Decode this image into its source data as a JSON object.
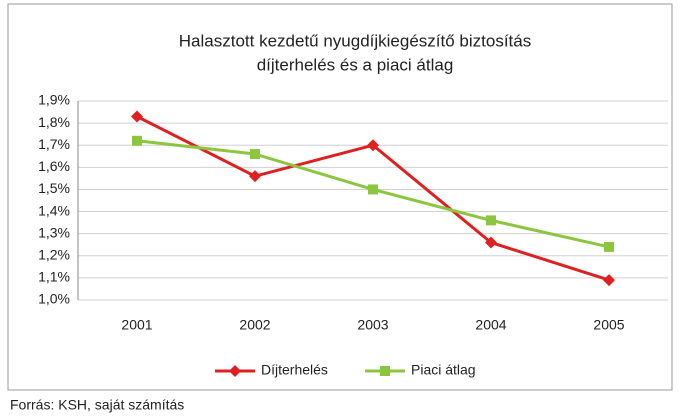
{
  "chart_data": {
    "type": "line",
    "title": [
      "Halasztott kezdetű nyugdíjkiegészítő biztosítás",
      "díjterhelés és a piaci átlag"
    ],
    "categories": [
      "2001",
      "2002",
      "2003",
      "2004",
      "2005"
    ],
    "series": [
      {
        "name": "Díjterhelés",
        "color": "#e02020",
        "marker": "diamond",
        "values": [
          1.83,
          1.56,
          1.7,
          1.26,
          1.09
        ]
      },
      {
        "name": "Piaci átlag",
        "color": "#8cc63f",
        "marker": "square",
        "values": [
          1.72,
          1.66,
          1.5,
          1.36,
          1.24
        ]
      }
    ],
    "ylim": [
      1.0,
      1.9
    ],
    "yticks": [
      {
        "value": 1.0,
        "label": "1,0%"
      },
      {
        "value": 1.1,
        "label": "1,1%"
      },
      {
        "value": 1.2,
        "label": "1,2%"
      },
      {
        "value": 1.3,
        "label": "1,3%"
      },
      {
        "value": 1.4,
        "label": "1,4%"
      },
      {
        "value": 1.5,
        "label": "1,5%"
      },
      {
        "value": 1.6,
        "label": "1,6%"
      },
      {
        "value": 1.7,
        "label": "1,7%"
      },
      {
        "value": 1.8,
        "label": "1,8%"
      },
      {
        "value": 1.9,
        "label": "1,9%"
      }
    ],
    "grid": true,
    "legend": "bottom",
    "source": "Forrás: KSH, saját számítás"
  }
}
